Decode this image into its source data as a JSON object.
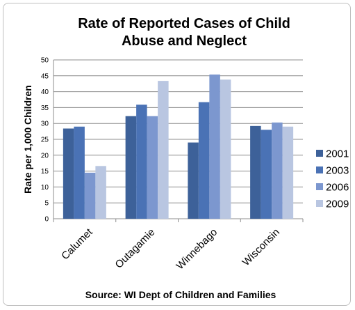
{
  "chart_data": {
    "type": "bar",
    "title_line1": "Rate of Reported Cases of Child",
    "title_line2": "Abuse and Neglect",
    "ylabel": "Rate per 1,000 Children",
    "xlabel": "",
    "source": "Source: WI Dept of Children and Families",
    "categories": [
      "Calumet",
      "Outagamie",
      "Winnebago",
      "Wisconsin"
    ],
    "ylim": [
      0,
      50
    ],
    "yticks": [
      "0",
      "5",
      "10",
      "15",
      "20",
      "25",
      "30",
      "35",
      "40",
      "45",
      "50"
    ],
    "grid": true,
    "legend_position": "right",
    "series": [
      {
        "name": "2001",
        "color": "#3d6199",
        "values": [
          28.4,
          32.3,
          24.0,
          29.2
        ]
      },
      {
        "name": "2003",
        "color": "#4a72b5",
        "values": [
          29.0,
          35.9,
          36.7,
          28.0
        ]
      },
      {
        "name": "2006",
        "color": "#7c97cf",
        "values": [
          14.5,
          32.3,
          45.4,
          30.3
        ]
      },
      {
        "name": "2009",
        "color": "#b9c6e1",
        "values": [
          16.6,
          43.4,
          43.8,
          29.0
        ]
      }
    ]
  }
}
